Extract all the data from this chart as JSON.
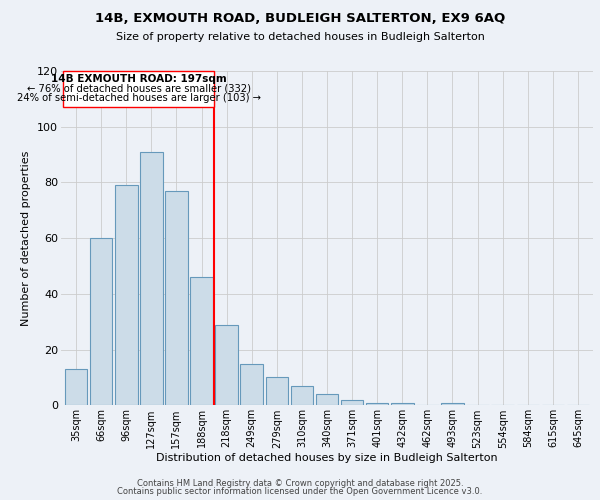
{
  "title": "14B, EXMOUTH ROAD, BUDLEIGH SALTERTON, EX9 6AQ",
  "subtitle": "Size of property relative to detached houses in Budleigh Salterton",
  "xlabel": "Distribution of detached houses by size in Budleigh Salterton",
  "ylabel": "Number of detached properties",
  "categories": [
    "35sqm",
    "66sqm",
    "96sqm",
    "127sqm",
    "157sqm",
    "188sqm",
    "218sqm",
    "249sqm",
    "279sqm",
    "310sqm",
    "340sqm",
    "371sqm",
    "401sqm",
    "432sqm",
    "462sqm",
    "493sqm",
    "523sqm",
    "554sqm",
    "584sqm",
    "615sqm",
    "645sqm"
  ],
  "values": [
    13,
    60,
    79,
    91,
    77,
    46,
    29,
    15,
    10,
    7,
    4,
    2,
    1,
    1,
    0,
    1,
    0,
    0,
    0,
    0,
    0
  ],
  "bar_color": "#ccdce8",
  "bar_edge_color": "#6699bb",
  "grid_color": "#cccccc",
  "background_color": "#edf1f7",
  "vline_x_index": 5,
  "vline_color": "red",
  "annotation_title": "14B EXMOUTH ROAD: 197sqm",
  "annotation_line1": "← 76% of detached houses are smaller (332)",
  "annotation_line2": "24% of semi-detached houses are larger (103) →",
  "annotation_box_color": "white",
  "annotation_box_edge": "red",
  "ylim": [
    0,
    120
  ],
  "yticks": [
    0,
    20,
    40,
    60,
    80,
    100,
    120
  ],
  "footer1": "Contains HM Land Registry data © Crown copyright and database right 2025.",
  "footer2": "Contains public sector information licensed under the Open Government Licence v3.0."
}
